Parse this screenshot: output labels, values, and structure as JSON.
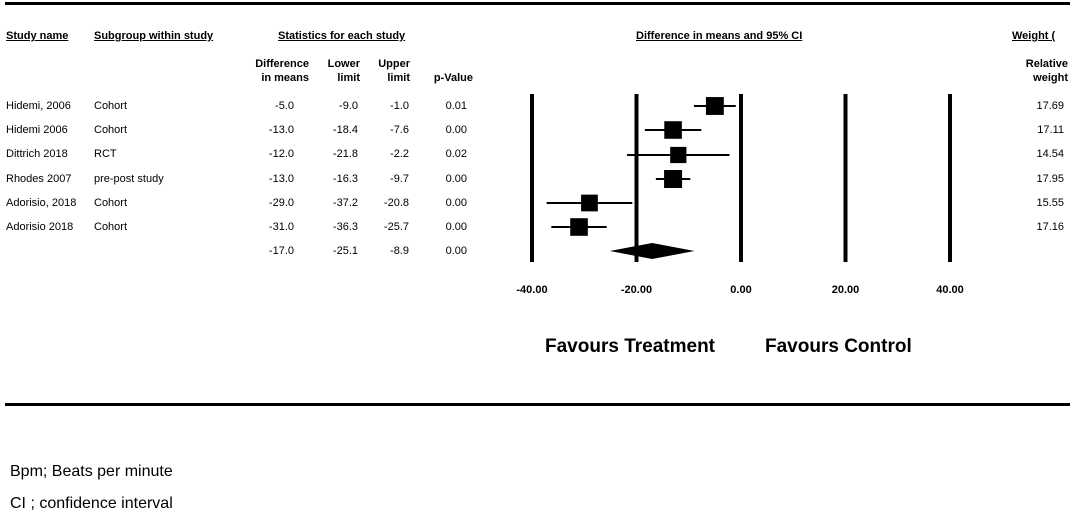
{
  "headers": {
    "study_name": "Study name",
    "subgroup": "Subgroup within study",
    "stats": "Statistics for each study",
    "plot": "Difference in means and 95% CI",
    "weight": "Weight ("
  },
  "subheaders": {
    "diff_line1": "Difference",
    "diff_line2": "in means",
    "lower_line1": "Lower",
    "lower_line2": "limit",
    "upper_line1": "Upper",
    "upper_line2": "limit",
    "pvalue": "p-Value",
    "weight_line1": "Relative",
    "weight_line2": "weight"
  },
  "rows": [
    {
      "study": "Hidemi, 2006",
      "subgroup": "Cohort",
      "diff": "-5.0",
      "lower": "-9.0",
      "upper": "-1.0",
      "p": "0.01",
      "weight": "17.69"
    },
    {
      "study": "Hidemi 2006",
      "subgroup": "Cohort",
      "diff": "-13.0",
      "lower": "-18.4",
      "upper": "-7.6",
      "p": "0.00",
      "weight": "17.11"
    },
    {
      "study": "Dittrich 2018",
      "subgroup": "RCT",
      "diff": "-12.0",
      "lower": "-21.8",
      "upper": "-2.2",
      "p": "0.02",
      "weight": "14.54"
    },
    {
      "study": "Rhodes 2007",
      "subgroup": "pre-post study",
      "diff": "-13.0",
      "lower": "-16.3",
      "upper": "-9.7",
      "p": "0.00",
      "weight": "17.95"
    },
    {
      "study": "Adorisio, 2018",
      "subgroup": "Cohort",
      "diff": "-29.0",
      "lower": "-37.2",
      "upper": "-20.8",
      "p": "0.00",
      "weight": "15.55"
    },
    {
      "study": "Adorisio 2018",
      "subgroup": "Cohort",
      "diff": "-31.0",
      "lower": "-36.3",
      "upper": "-25.7",
      "p": "0.00",
      "weight": "17.16"
    }
  ],
  "summary": {
    "diff": "-17.0",
    "lower": "-25.1",
    "upper": "-8.9",
    "p": "0.00"
  },
  "favours": {
    "left": "Favours Treatment",
    "right": "Favours Control"
  },
  "footnotes": [
    "Bpm; Beats per minute",
    "CI ; confidence interval"
  ],
  "chart_data": {
    "type": "forest",
    "title": "Difference in means and 95% CI",
    "xlim": [
      -40,
      40
    ],
    "xticks": [
      -40,
      -20,
      0,
      20,
      40
    ],
    "xtick_labels": [
      "-40.00",
      "-20.00",
      "0.00",
      "20.00",
      "40.00"
    ],
    "studies": [
      {
        "name": "Hidemi, 2006",
        "mean": -5.0,
        "lower": -9.0,
        "upper": -1.0,
        "weight": 17.69
      },
      {
        "name": "Hidemi 2006",
        "mean": -13.0,
        "lower": -18.4,
        "upper": -7.6,
        "weight": 17.11
      },
      {
        "name": "Dittrich 2018",
        "mean": -12.0,
        "lower": -21.8,
        "upper": -2.2,
        "weight": 14.54
      },
      {
        "name": "Rhodes 2007",
        "mean": -13.0,
        "lower": -16.3,
        "upper": -9.7,
        "weight": 17.95
      },
      {
        "name": "Adorisio, 2018",
        "mean": -29.0,
        "lower": -37.2,
        "upper": -20.8,
        "weight": 15.55
      },
      {
        "name": "Adorisio 2018",
        "mean": -31.0,
        "lower": -36.3,
        "upper": -25.7,
        "weight": 17.16
      }
    ],
    "pooled": {
      "mean": -17.0,
      "lower": -25.1,
      "upper": -8.9
    }
  }
}
